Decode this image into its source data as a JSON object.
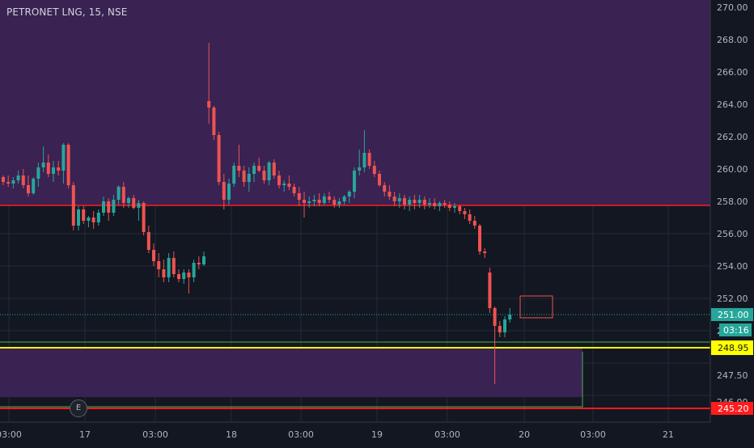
{
  "chart": {
    "symbol_title": "PETRONET LNG, 15, NSE",
    "earnings_marker": "E",
    "colors": {
      "background": "#131722",
      "up_candle": "#26a69a",
      "down_candle": "#ef5350",
      "purple_zone": "#3a2252",
      "red_line": "#ff1c1c",
      "yellow_line": "#ffff00",
      "green_outline": "#4caf50",
      "grid": "#262a35"
    },
    "price_axis": {
      "ticks": [
        "270.00",
        "268.00",
        "266.00",
        "264.00",
        "262.00",
        "260.00",
        "258.00",
        "256.00",
        "254.00",
        "252.00",
        "250.00",
        "247.50",
        "246.00"
      ],
      "labels": [
        {
          "text": "251.00",
          "sub": "03:16",
          "price": 251.0,
          "color": "#26a69a"
        },
        {
          "text": "248.95",
          "price": 248.95,
          "color": "#ffff00"
        },
        {
          "text": "245.20",
          "price": 245.2,
          "color": "#ff1c1c"
        }
      ]
    },
    "time_axis": {
      "ticks": [
        "03:00",
        "17",
        "03:00",
        "18",
        "03:00",
        "19",
        "03:00",
        "20",
        "03:00",
        "21"
      ]
    }
  },
  "chart_data": {
    "type": "candlestick",
    "title": "PETRONET LNG, 15, NSE",
    "ylim": [
      245.0,
      270.5
    ],
    "horizontal_lines": [
      257.75,
      248.95,
      245.2
    ],
    "current_price": 251.0,
    "zones": [
      {
        "from_price": 257.75,
        "to_price": 270.5,
        "label": "",
        "color": "#3a2252"
      },
      {
        "from_price": 245.9,
        "to_price": 248.95,
        "label": "",
        "color": "#3a2252"
      }
    ],
    "candles": [
      [
        259.5,
        259.6,
        259.0,
        259.2
      ],
      [
        259.2,
        259.6,
        258.9,
        259.1
      ],
      [
        259.1,
        259.5,
        258.8,
        259.3
      ],
      [
        259.3,
        259.9,
        259.1,
        259.6
      ],
      [
        259.6,
        260.0,
        258.8,
        259.0
      ],
      [
        259.0,
        259.6,
        258.3,
        258.5
      ],
      [
        258.5,
        259.5,
        258.4,
        259.4
      ],
      [
        259.4,
        260.4,
        258.9,
        260.1
      ],
      [
        260.1,
        261.4,
        259.8,
        260.4
      ],
      [
        260.4,
        260.9,
        259.5,
        259.7
      ],
      [
        259.7,
        260.5,
        259.2,
        260.1
      ],
      [
        260.1,
        260.5,
        259.6,
        259.9
      ],
      [
        259.9,
        261.6,
        259.1,
        261.5
      ],
      [
        261.5,
        261.6,
        258.8,
        259.0
      ],
      [
        259.0,
        259.2,
        256.2,
        256.5
      ],
      [
        256.5,
        257.7,
        256.2,
        257.5
      ],
      [
        257.5,
        257.7,
        256.6,
        256.8
      ],
      [
        256.8,
        257.1,
        256.4,
        257.0
      ],
      [
        257.0,
        257.4,
        256.3,
        256.7
      ],
      [
        256.7,
        257.5,
        256.5,
        257.3
      ],
      [
        257.3,
        258.3,
        257.1,
        258.0
      ],
      [
        258.0,
        258.2,
        256.8,
        257.3
      ],
      [
        257.3,
        258.4,
        257.1,
        258.1
      ],
      [
        258.1,
        259.0,
        257.8,
        258.9
      ],
      [
        258.9,
        259.2,
        257.6,
        257.9
      ],
      [
        257.9,
        258.3,
        257.6,
        258.2
      ],
      [
        258.2,
        258.4,
        257.5,
        257.6
      ],
      [
        257.6,
        258.1,
        256.8,
        257.9
      ],
      [
        257.9,
        258.0,
        255.9,
        256.1
      ],
      [
        256.1,
        256.5,
        254.8,
        255.0
      ],
      [
        255.0,
        255.4,
        254.0,
        254.3
      ],
      [
        254.3,
        254.8,
        253.3,
        253.8
      ],
      [
        253.8,
        254.4,
        253.0,
        253.3
      ],
      [
        253.3,
        254.8,
        253.0,
        254.5
      ],
      [
        254.5,
        254.9,
        253.3,
        253.5
      ],
      [
        253.5,
        253.8,
        253.0,
        253.2
      ],
      [
        253.2,
        253.8,
        252.9,
        253.6
      ],
      [
        253.6,
        253.8,
        252.3,
        253.3
      ],
      [
        253.3,
        254.4,
        253.0,
        254.2
      ],
      [
        254.2,
        254.6,
        253.8,
        254.1
      ],
      [
        254.1,
        254.9,
        254.0,
        254.6
      ],
      [
        264.2,
        267.8,
        262.8,
        263.8
      ],
      [
        263.8,
        263.9,
        261.8,
        262.1
      ],
      [
        262.1,
        262.3,
        259.0,
        259.2
      ],
      [
        259.2,
        259.7,
        257.5,
        258.1
      ],
      [
        258.1,
        259.4,
        257.8,
        259.1
      ],
      [
        259.1,
        260.4,
        258.9,
        260.2
      ],
      [
        260.2,
        261.5,
        259.5,
        259.9
      ],
      [
        259.9,
        260.2,
        258.9,
        259.2
      ],
      [
        259.2,
        260.1,
        258.6,
        259.7
      ],
      [
        259.7,
        260.4,
        259.2,
        260.2
      ],
      [
        260.2,
        260.7,
        259.8,
        259.9
      ],
      [
        259.9,
        260.2,
        259.1,
        259.3
      ],
      [
        259.3,
        260.5,
        259.0,
        260.4
      ],
      [
        260.4,
        260.6,
        259.4,
        259.6
      ],
      [
        259.6,
        259.9,
        258.8,
        259.0
      ],
      [
        259.0,
        259.3,
        258.6,
        259.1
      ],
      [
        259.1,
        259.6,
        258.7,
        258.9
      ],
      [
        258.9,
        259.1,
        258.3,
        258.5
      ],
      [
        258.5,
        258.9,
        257.7,
        258.1
      ],
      [
        258.1,
        258.6,
        257.0,
        257.9
      ],
      [
        257.9,
        258.3,
        257.6,
        258.0
      ],
      [
        258.0,
        258.4,
        257.7,
        258.1
      ],
      [
        258.1,
        258.5,
        257.7,
        257.9
      ],
      [
        257.9,
        258.5,
        257.8,
        258.3
      ],
      [
        258.3,
        258.6,
        257.9,
        258.1
      ],
      [
        258.1,
        258.3,
        257.6,
        257.8
      ],
      [
        257.8,
        258.2,
        257.6,
        258.0
      ],
      [
        258.0,
        258.4,
        257.8,
        258.3
      ],
      [
        258.3,
        258.7,
        257.9,
        258.6
      ],
      [
        258.6,
        260.1,
        258.2,
        259.9
      ],
      [
        259.9,
        261.2,
        259.6,
        260.1
      ],
      [
        260.1,
        262.4,
        259.8,
        261.0
      ],
      [
        261.0,
        261.2,
        260.0,
        260.2
      ],
      [
        260.2,
        260.5,
        259.5,
        259.7
      ],
      [
        259.7,
        259.9,
        258.9,
        259.0
      ],
      [
        259.0,
        259.2,
        258.3,
        258.6
      ],
      [
        258.6,
        259.0,
        258.1,
        258.3
      ],
      [
        258.3,
        258.6,
        257.7,
        258.0
      ],
      [
        258.0,
        258.5,
        257.6,
        258.2
      ],
      [
        258.2,
        258.4,
        257.5,
        257.8
      ],
      [
        257.8,
        258.3,
        257.4,
        258.1
      ],
      [
        258.1,
        258.4,
        257.5,
        257.9
      ],
      [
        257.9,
        258.4,
        257.6,
        258.1
      ],
      [
        258.1,
        258.3,
        257.5,
        257.8
      ],
      [
        257.8,
        258.2,
        257.6,
        257.9
      ],
      [
        257.9,
        258.2,
        257.5,
        257.7
      ],
      [
        257.7,
        258.0,
        257.4,
        257.9
      ],
      [
        257.9,
        258.1,
        257.6,
        257.8
      ],
      [
        257.8,
        258.0,
        257.4,
        257.6
      ],
      [
        257.6,
        257.9,
        257.3,
        257.7
      ],
      [
        257.7,
        257.8,
        257.2,
        257.4
      ],
      [
        257.4,
        257.6,
        256.9,
        257.2
      ],
      [
        257.2,
        257.5,
        256.6,
        256.8
      ],
      [
        256.8,
        257.1,
        256.3,
        256.5
      ],
      [
        256.5,
        256.6,
        254.7,
        254.9
      ],
      [
        254.9,
        255.1,
        254.5,
        254.8
      ],
      [
        253.6,
        253.9,
        251.1,
        251.4
      ],
      [
        251.4,
        251.5,
        246.7,
        250.3
      ],
      [
        250.3,
        250.6,
        249.6,
        249.9
      ],
      [
        249.9,
        250.9,
        249.6,
        250.7
      ],
      [
        250.7,
        251.4,
        250.5,
        251.0
      ]
    ]
  }
}
